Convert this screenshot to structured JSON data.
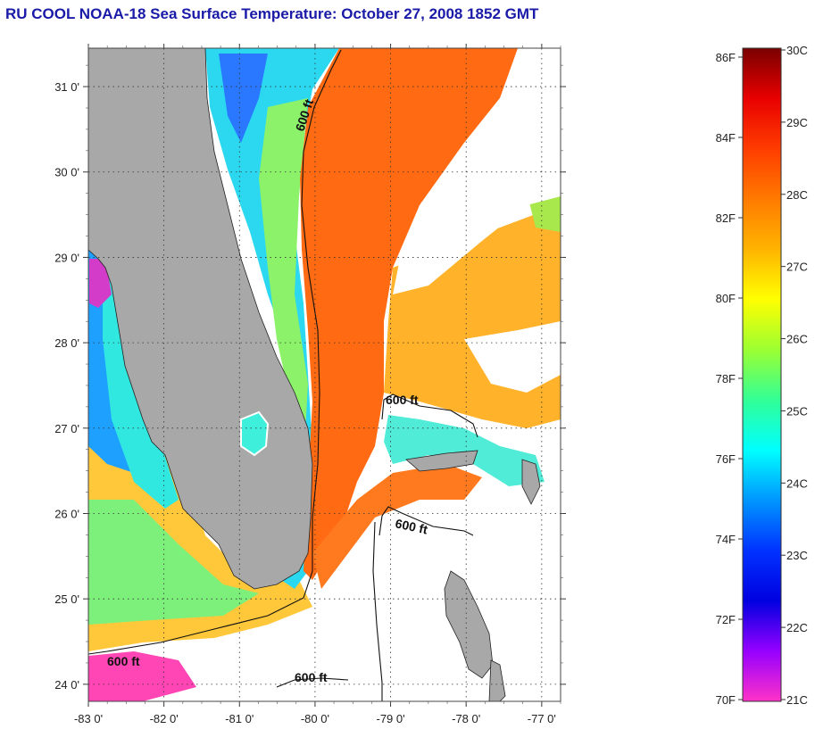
{
  "title": "RU COOL  NOAA-18  Sea Surface Temperature:  October 27, 2008 1852 GMT",
  "map": {
    "lon_range": [
      -83,
      -76.75
    ],
    "lat_range": [
      23.8,
      31.45
    ],
    "lon_ticks": [
      {
        "value": -83,
        "label": "-83 0'"
      },
      {
        "value": -82,
        "label": "-82 0'"
      },
      {
        "value": -81,
        "label": "-81 0'"
      },
      {
        "value": -80,
        "label": "-80 0'"
      },
      {
        "value": -79,
        "label": "-79 0'"
      },
      {
        "value": -78,
        "label": "-78 0'"
      },
      {
        "value": -77,
        "label": "-77 0'"
      }
    ],
    "lat_ticks": [
      {
        "value": 31,
        "label": "31 0'"
      },
      {
        "value": 30,
        "label": "30 0'"
      },
      {
        "value": 29,
        "label": "29 0'"
      },
      {
        "value": 28,
        "label": "28 0'"
      },
      {
        "value": 27,
        "label": "27 0'"
      },
      {
        "value": 26,
        "label": "26 0'"
      },
      {
        "value": 25,
        "label": "25 0'"
      },
      {
        "value": 24,
        "label": "24 0'"
      }
    ],
    "grid": "dotted",
    "contour_labels": [
      "600 ft",
      "600 ft",
      "600 ft",
      "600 ft",
      "600 ft"
    ],
    "colors": {
      "land": "#a8a8a8",
      "no_data": "#ffffff",
      "gulf_stream": "#ff6a12",
      "coastal_shelf": "#22e0e8"
    }
  },
  "colorbar": {
    "f_labels": [
      "86F",
      "84F",
      "82F",
      "80F",
      "78F",
      "76F",
      "74F",
      "72F",
      "70F"
    ],
    "c_labels": [
      "30C",
      "29C",
      "28C",
      "27C",
      "26C",
      "25C",
      "24C",
      "23C",
      "22C",
      "21C"
    ],
    "gradient": [
      "#7a0000",
      "#e80000",
      "#ff3c00",
      "#ff7a00",
      "#ffb400",
      "#ffff00",
      "#9cff32",
      "#32ff96",
      "#00ffff",
      "#0096ff",
      "#0032ff",
      "#0000e0",
      "#9600ff",
      "#ff32c8"
    ]
  }
}
